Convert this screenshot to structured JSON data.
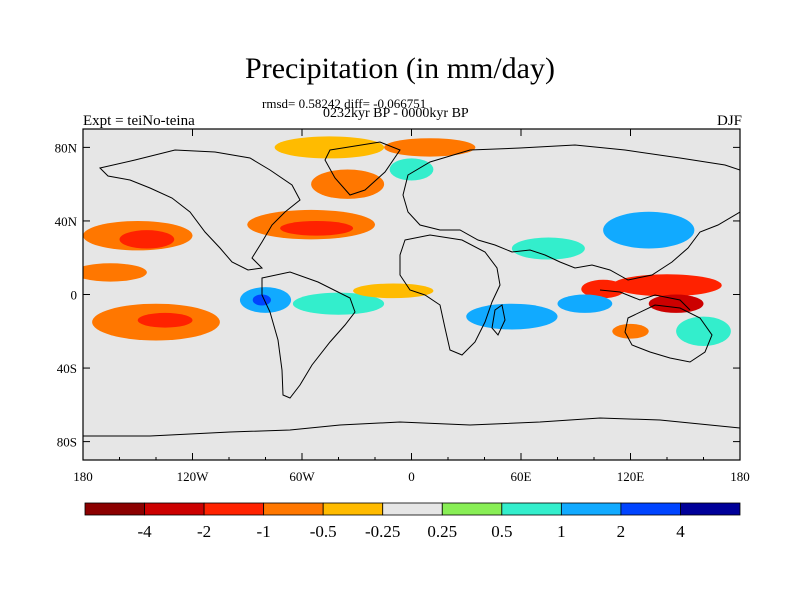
{
  "chart_data": {
    "type": "heatmap",
    "title": "Precipitation (in mm/day)",
    "stats_text": "rmsd= 0.58242 diff= -0.066751",
    "period_text": "0232kyr BP - 0000kyr BP",
    "left_label": "Expt = teiNo-teina",
    "right_label": "DJF",
    "x_ticks": [
      "180",
      "120W",
      "60W",
      "0",
      "60E",
      "120E",
      "180"
    ],
    "x_values": [
      -180,
      -120,
      -60,
      0,
      60,
      120,
      180
    ],
    "y_ticks": [
      "80N",
      "40N",
      "0",
      "40S",
      "80S"
    ],
    "y_values": [
      80,
      40,
      0,
      -40,
      -80
    ],
    "xlim": [
      -180,
      180
    ],
    "ylim": [
      -90,
      90
    ],
    "colorbar": {
      "colors": [
        "#8b0000",
        "#cc0000",
        "#ff2200",
        "#ff7700",
        "#ffbb00",
        "#e6e6e6",
        "#88ee55",
        "#33eecc",
        "#11aaff",
        "#0044ff",
        "#000099"
      ],
      "labels": [
        "-4",
        "-2",
        "-1",
        "-0.5",
        "-0.25",
        "0.25",
        "0.5",
        "1",
        "2",
        "4"
      ]
    },
    "background_color": "#e6e6e6",
    "anomaly_blobs": [
      {
        "lon": -150,
        "lat": 32,
        "rlon": 30,
        "rlat": 8,
        "level": "#ff7700"
      },
      {
        "lon": -145,
        "lat": 30,
        "rlon": 15,
        "rlat": 5,
        "level": "#ff2200"
      },
      {
        "lon": -165,
        "lat": 12,
        "rlon": 20,
        "rlat": 5,
        "level": "#ff7700"
      },
      {
        "lon": -140,
        "lat": -15,
        "rlon": 35,
        "rlat": 10,
        "level": "#ff7700"
      },
      {
        "lon": -135,
        "lat": -14,
        "rlon": 15,
        "rlat": 4,
        "level": "#ff2200"
      },
      {
        "lon": -55,
        "lat": 38,
        "rlon": 35,
        "rlat": 8,
        "level": "#ff7700"
      },
      {
        "lon": -52,
        "lat": 36,
        "rlon": 20,
        "rlat": 4,
        "level": "#ff2200"
      },
      {
        "lon": -45,
        "lat": 80,
        "rlon": 30,
        "rlat": 6,
        "level": "#ffbb00"
      },
      {
        "lon": 10,
        "lat": 80,
        "rlon": 25,
        "rlat": 5,
        "level": "#ff7700"
      },
      {
        "lon": -35,
        "lat": 60,
        "rlon": 20,
        "rlat": 8,
        "level": "#ff7700"
      },
      {
        "lon": 0,
        "lat": 68,
        "rlon": 12,
        "rlat": 6,
        "level": "#33eecc"
      },
      {
        "lon": -80,
        "lat": -3,
        "rlon": 14,
        "rlat": 7,
        "level": "#11aaff"
      },
      {
        "lon": -82,
        "lat": -3,
        "rlon": 5,
        "rlat": 3,
        "level": "#0044ff"
      },
      {
        "lon": -40,
        "lat": -5,
        "rlon": 25,
        "rlat": 6,
        "level": "#33eecc"
      },
      {
        "lon": -10,
        "lat": 2,
        "rlon": 22,
        "rlat": 4,
        "level": "#ffbb00"
      },
      {
        "lon": 55,
        "lat": -12,
        "rlon": 25,
        "rlat": 7,
        "level": "#11aaff"
      },
      {
        "lon": 75,
        "lat": 25,
        "rlon": 20,
        "rlat": 6,
        "level": "#33eecc"
      },
      {
        "lon": 130,
        "lat": 35,
        "rlon": 25,
        "rlat": 10,
        "level": "#11aaff"
      },
      {
        "lon": 140,
        "lat": 5,
        "rlon": 30,
        "rlat": 6,
        "level": "#ff2200"
      },
      {
        "lon": 145,
        "lat": -5,
        "rlon": 15,
        "rlat": 5,
        "level": "#cc0000"
      },
      {
        "lon": 105,
        "lat": 3,
        "rlon": 12,
        "rlat": 5,
        "level": "#ff2200"
      },
      {
        "lon": 95,
        "lat": -5,
        "rlon": 15,
        "rlat": 5,
        "level": "#11aaff"
      },
      {
        "lon": 120,
        "lat": -20,
        "rlon": 10,
        "rlat": 4,
        "level": "#ff7700"
      },
      {
        "lon": 160,
        "lat": -20,
        "rlon": 15,
        "rlat": 8,
        "level": "#33eecc"
      }
    ]
  }
}
